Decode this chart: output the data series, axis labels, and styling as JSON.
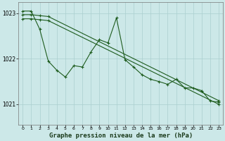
{
  "bg_color": "#cce8e8",
  "grid_color": "#aacfcf",
  "line_color": "#1e5c1e",
  "title": "Graphe pression niveau de la mer (hPa)",
  "title_fontsize": 6.5,
  "ylim": [
    1020.55,
    1023.25
  ],
  "xlim": [
    -0.5,
    23.5
  ],
  "yticks": [
    1021,
    1022,
    1023
  ],
  "xticks": [
    0,
    1,
    2,
    3,
    4,
    5,
    6,
    7,
    8,
    9,
    10,
    11,
    12,
    13,
    14,
    15,
    16,
    17,
    18,
    19,
    20,
    21,
    22,
    23
  ],
  "line1_x": [
    0,
    1,
    2,
    3,
    4,
    5,
    6,
    7,
    8,
    9,
    10,
    11,
    12,
    13,
    14,
    15,
    16,
    17,
    18,
    19,
    20,
    21,
    22,
    23
  ],
  "line1_y": [
    1023.05,
    1023.05,
    1022.65,
    1021.95,
    1021.75,
    1021.6,
    1021.85,
    1021.82,
    1022.15,
    1022.42,
    1022.35,
    1022.9,
    1021.98,
    1021.82,
    1021.65,
    1021.55,
    1021.5,
    1021.44,
    1021.55,
    1021.36,
    1021.36,
    1021.3,
    1021.07,
    1021.05
  ],
  "line2_x": [
    0,
    1,
    2,
    3,
    23
  ],
  "line2_y": [
    1022.97,
    1022.97,
    1022.95,
    1022.93,
    1021.08
  ],
  "line3_x": [
    0,
    1,
    2,
    3,
    23
  ],
  "line3_y": [
    1022.88,
    1022.88,
    1022.86,
    1022.84,
    1021.0
  ]
}
